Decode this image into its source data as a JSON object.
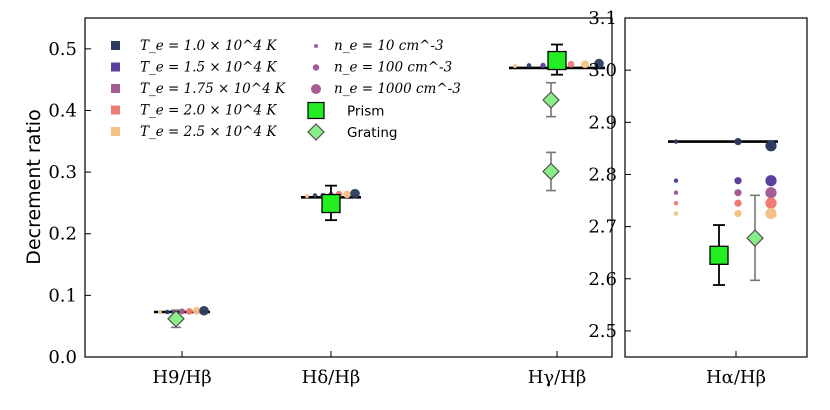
{
  "chart_data": [
    {
      "type": "scatter",
      "ylabel": "Decrement ratio",
      "ylim": [
        0.0,
        0.55
      ],
      "yticks": [
        "0.0",
        "0.1",
        "0.2",
        "0.3",
        "0.4",
        "0.5"
      ],
      "categories": [
        "H9/Hβ",
        "Hδ/Hβ",
        "Hγ/Hβ"
      ],
      "theory": [
        0.073,
        0.259,
        0.469
      ],
      "model_points": {
        "H9/Hβ": [
          0.073,
          0.073,
          0.073,
          0.074,
          0.074,
          0.075,
          0.075
        ],
        "Hδ/Hβ": [
          0.261,
          0.262,
          0.262,
          0.263,
          0.264,
          0.264,
          0.265
        ],
        "Hγ/Hβ": [
          0.472,
          0.473,
          0.473,
          0.474,
          0.475,
          0.475,
          0.476
        ]
      },
      "prism": {
        "H9/Hβ": {
          "value": null,
          "err": null
        },
        "Hδ/Hβ": {
          "value": 0.249,
          "err_low": 0.222,
          "err_high": 0.278
        },
        "Hγ/Hβ": {
          "value": 0.481,
          "err_low": 0.458,
          "err_high": 0.507
        }
      },
      "grating": {
        "H9/Hβ": [
          {
            "value": 0.062,
            "err_low": 0.048,
            "err_high": 0.076
          }
        ],
        "Hγ/Hβ": [
          {
            "value": 0.417,
            "err_low": 0.39,
            "err_high": 0.445
          },
          {
            "value": 0.301,
            "err_low": 0.27,
            "err_high": 0.332
          }
        ]
      }
    },
    {
      "type": "scatter",
      "ylim": [
        2.45,
        3.1
      ],
      "yticks": [
        "2.5",
        "2.6",
        "2.7",
        "2.8",
        "2.9",
        "3.0",
        "3.1"
      ],
      "categories": [
        "Hα/Hβ"
      ],
      "theory": [
        2.863
      ],
      "prism": {
        "value": 2.645,
        "err_low": 2.588,
        "err_high": 2.703
      },
      "grating": {
        "value": 2.678,
        "err_low": 2.597,
        "err_high": 2.76
      }
    }
  ],
  "legend": {
    "temperatures": [
      {
        "label": "T_e = 1.0 × 10^4 K",
        "color": "#2b3a5e"
      },
      {
        "label": "T_e = 1.5 × 10^4 K",
        "color": "#5a3f9e"
      },
      {
        "label": "T_e = 1.75 × 10^4 K",
        "color": "#a55c97"
      },
      {
        "label": "T_e = 2.0 × 10^4 K",
        "color": "#ee7b74"
      },
      {
        "label": "T_e = 2.5 × 10^4 K",
        "color": "#f6c187"
      }
    ],
    "densities": [
      {
        "label": "n_e = 10 cm^-3"
      },
      {
        "label": "n_e = 100 cm^-3"
      },
      {
        "label": "n_e = 1000 cm^-3"
      }
    ],
    "prism_label": "Prism",
    "grating_label": "Grating",
    "prism_color": "#22ee22",
    "grating_color": "#88ee88"
  }
}
